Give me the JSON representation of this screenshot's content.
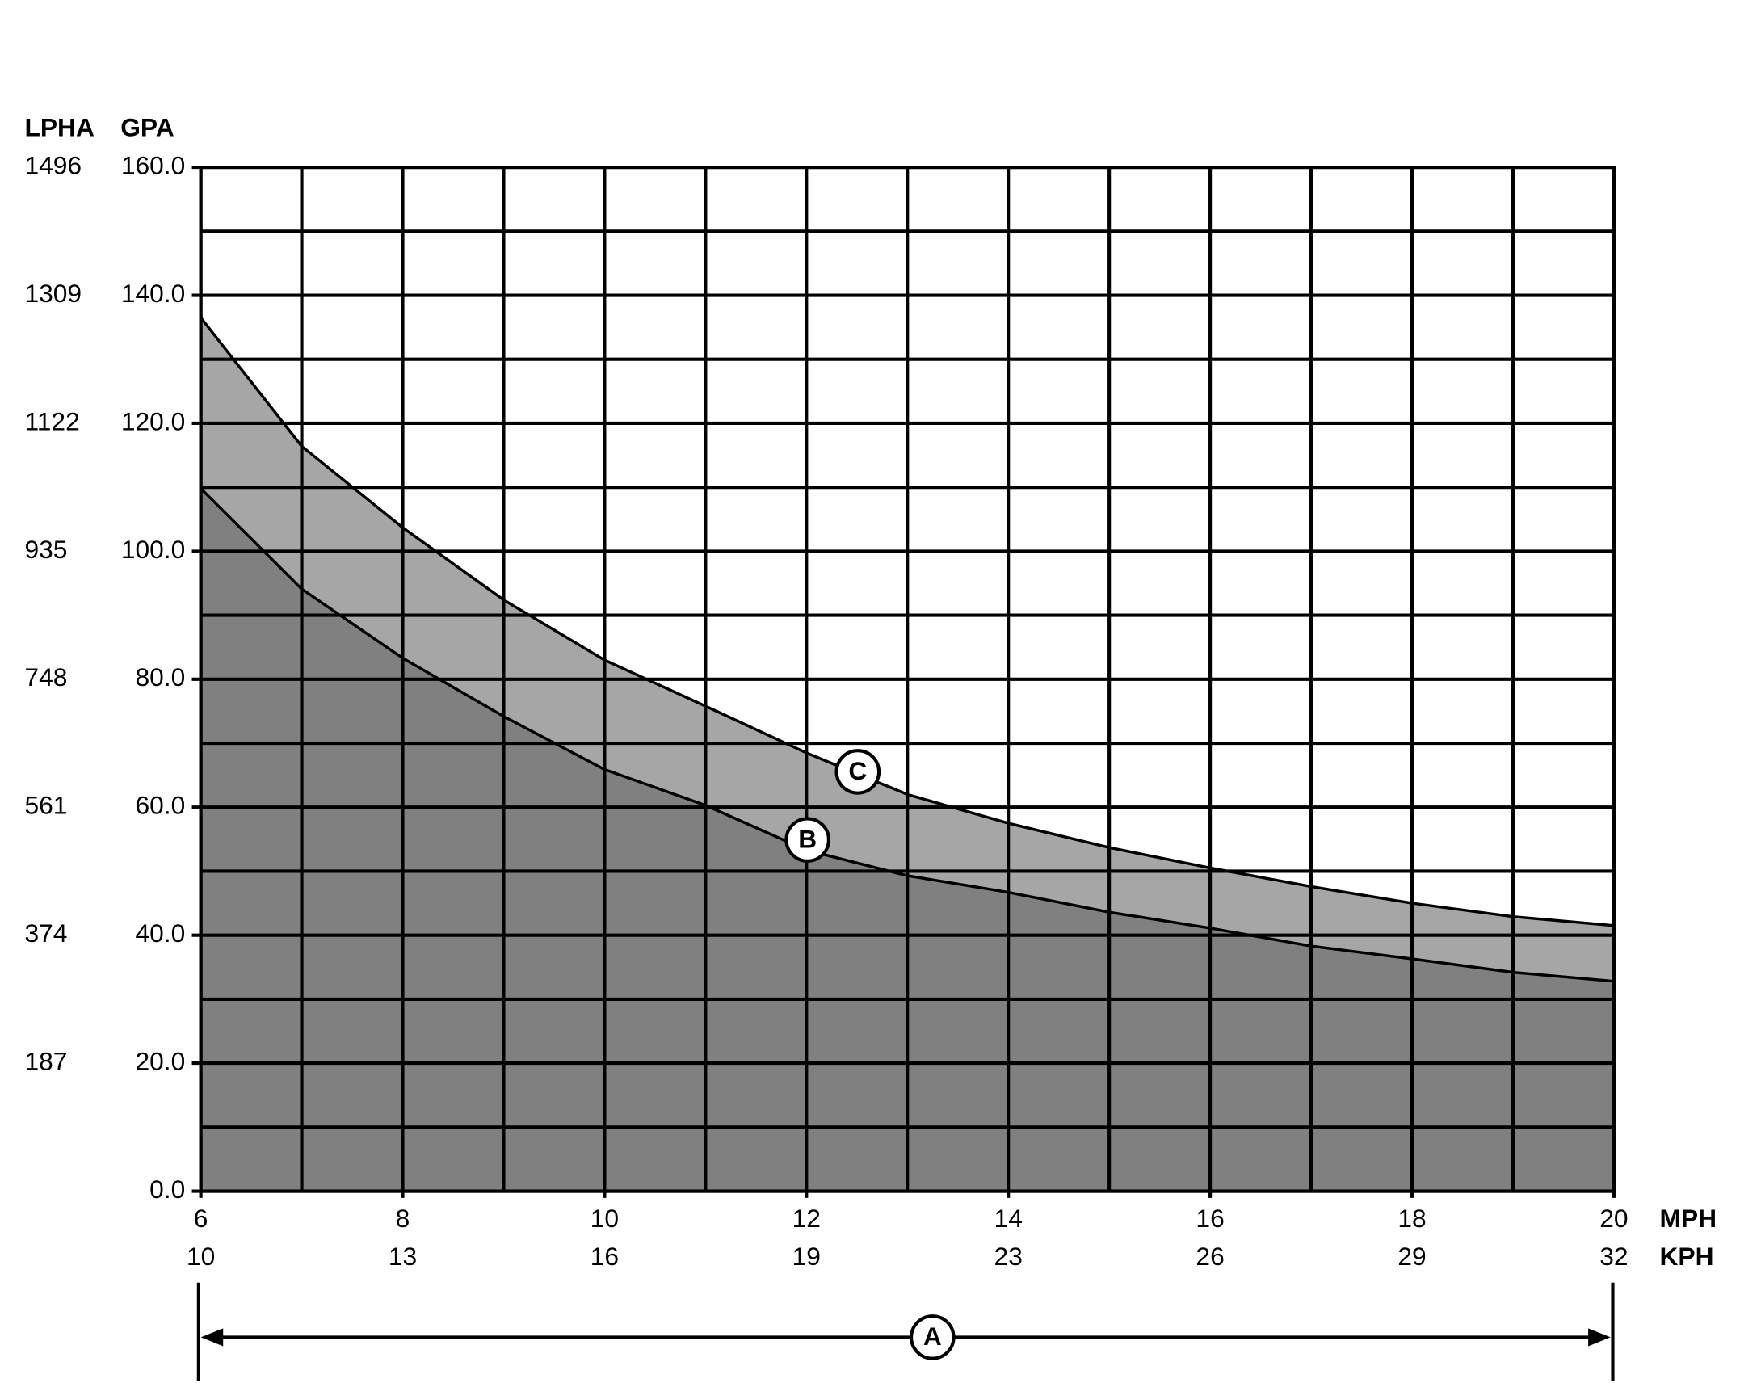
{
  "chart_data": {
    "type": "area",
    "y_label": "GPA",
    "y2_label": "LPHA",
    "x_label": "MPH",
    "x2_label": "KPH",
    "x": [
      6,
      7,
      8,
      9,
      10,
      11,
      12,
      13,
      14,
      15,
      16,
      17,
      18,
      19,
      20
    ],
    "series": [
      {
        "name": "C",
        "color": "#a6a6a6",
        "values": [
          136.5,
          116.4,
          103.7,
          92.4,
          83,
          75.8,
          68.5,
          62,
          57.5,
          53.7,
          50.5,
          47.6,
          45,
          42.9,
          41.5
        ]
      },
      {
        "name": "B",
        "color": "#808080",
        "values": [
          109.8,
          94.1,
          83.3,
          74.2,
          65.9,
          60.3,
          53.3,
          49.3,
          46.7,
          43.6,
          41.1,
          38.3,
          36.3,
          34.2,
          32.8
        ]
      }
    ],
    "xlim": [
      6,
      20
    ],
    "xticks": [
      6,
      8,
      10,
      12,
      14,
      16,
      18,
      20
    ],
    "x_minor_ticks": [
      7,
      9,
      11,
      13,
      15,
      17,
      19
    ],
    "x2_labels": [
      "10",
      "13",
      "16",
      "19",
      "23",
      "26",
      "29",
      "32"
    ],
    "ylim": [
      0,
      160
    ],
    "yticks": [
      {
        "value": 0,
        "label": "0.0"
      },
      {
        "value": 20,
        "label": "20.0"
      },
      {
        "value": 40,
        "label": "40.0"
      },
      {
        "value": 60,
        "label": "60.0"
      },
      {
        "value": 80,
        "label": "80.0"
      },
      {
        "value": 100,
        "label": "100.0"
      },
      {
        "value": 120,
        "label": "120.0"
      },
      {
        "value": 140,
        "label": "140.0"
      },
      {
        "value": 160,
        "label": "160.0"
      }
    ],
    "y_minor_ticks": [
      10,
      30,
      50,
      70,
      90,
      110,
      130,
      150
    ],
    "y2lim": [
      0,
      1496
    ],
    "y2ticks": [
      187,
      374,
      561,
      748,
      935,
      1122,
      1309,
      1496
    ],
    "grid": true,
    "annotations": [
      {
        "text": "A"
      }
    ]
  }
}
